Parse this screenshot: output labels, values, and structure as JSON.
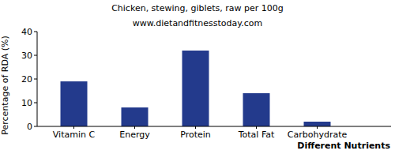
{
  "chart_data": {
    "type": "bar",
    "title": "Chicken, stewing, giblets, raw per 100g",
    "subtitle": "www.dietandfitnesstoday.com",
    "x_label": "Different Nutrients",
    "y_label": "Percentage of RDA (%)",
    "categories": [
      "Vitamin C",
      "Energy",
      "Protein",
      "Total Fat",
      "Carbohydrate"
    ],
    "values": [
      19,
      8,
      32,
      14,
      2
    ],
    "color": "#233a8c",
    "ylim": [
      0,
      40
    ],
    "yticks": [
      0,
      10,
      20,
      30,
      40
    ],
    "grid": false
  }
}
